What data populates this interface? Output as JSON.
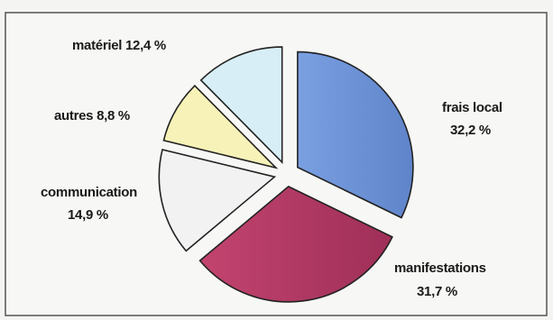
{
  "chart_data": {
    "type": "pie",
    "title": "",
    "slices": [
      {
        "name": "frais local",
        "value": 32.2,
        "display": "32,2 %",
        "color": "#6f95d8"
      },
      {
        "name": "manifestations",
        "value": 31.7,
        "display": "31,7 %",
        "color": "#b23a66"
      },
      {
        "name": "communication",
        "value": 14.9,
        "display": "14,9 %",
        "color": "#f2f2f2"
      },
      {
        "name": "autres",
        "value": 8.8,
        "display": "8,8 %",
        "color": "#f7f2b8"
      },
      {
        "name": "matériel",
        "value": 12.4,
        "display": "12,4 %",
        "color": "#d7eef6"
      }
    ],
    "legend": "none",
    "exploded": true
  }
}
